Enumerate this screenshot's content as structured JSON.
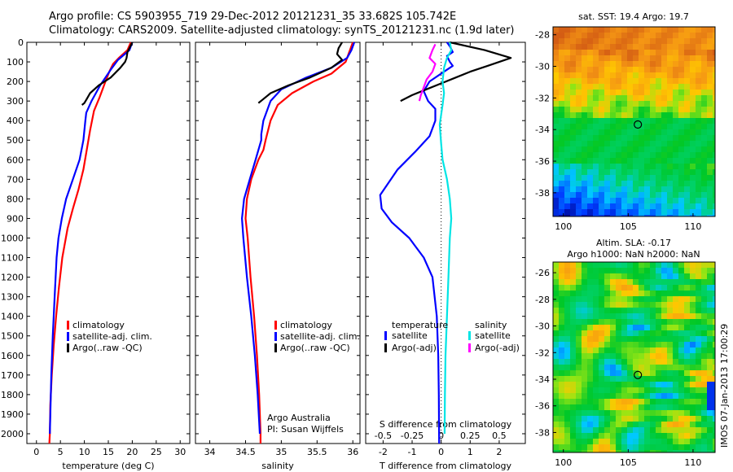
{
  "header": {
    "title_line1": "Argo profile: CS 5903955_719 29-Dec-2012 20121231_35 33.682S 105.742E",
    "title_line2": "Climatology: CARS2009. Satellite-adjusted climatology: synTS_20121231.nc (1.9d later)"
  },
  "colors": {
    "climatology": "#ff0000",
    "satellite": "#0000ff",
    "argo": "#000000",
    "sat_salinity": "#00e5e5",
    "argo_salinity": "#ff00ff"
  },
  "depth_axis": {
    "ticks": [
      "0",
      "100",
      "200",
      "300",
      "400",
      "500",
      "600",
      "700",
      "800",
      "900",
      "1000",
      "1100",
      "1200",
      "1300",
      "1400",
      "1500",
      "1600",
      "1700",
      "1800",
      "1900",
      "2000"
    ],
    "ylim": [
      0,
      2050
    ],
    "inverted": true
  },
  "chart_data": [
    {
      "type": "line",
      "id": "temperature",
      "xlabel": "temperature (deg C)",
      "xlim": [
        -2,
        32
      ],
      "xticks": [
        "0",
        "5",
        "10",
        "15",
        "20",
        "25",
        "30"
      ],
      "xtick_values": [
        0,
        5,
        10,
        15,
        20,
        25,
        30
      ],
      "legend": [
        "climatology",
        "satellite-adj. clim.",
        "Argo(..raw -QC)"
      ],
      "series": [
        {
          "name": "climatology",
          "color": "#ff0000",
          "points": [
            [
              19.7,
              0
            ],
            [
              19,
              40
            ],
            [
              17.2,
              80
            ],
            [
              16,
              110
            ],
            [
              15.2,
              150
            ],
            [
              14.4,
              200
            ],
            [
              13.2,
              280
            ],
            [
              12,
              350
            ],
            [
              11.2,
              450
            ],
            [
              10.5,
              550
            ],
            [
              9.8,
              650
            ],
            [
              8.8,
              750
            ],
            [
              7.6,
              850
            ],
            [
              6.5,
              950
            ],
            [
              5.4,
              1100
            ],
            [
              4.7,
              1250
            ],
            [
              4.1,
              1400
            ],
            [
              3.6,
              1550
            ],
            [
              3.2,
              1700
            ],
            [
              2.9,
              1850
            ],
            [
              2.8,
              2000
            ],
            [
              2.7,
              2050
            ]
          ]
        },
        {
          "name": "satellite-adj. clim.",
          "color": "#0000ff",
          "points": [
            [
              20,
              0
            ],
            [
              19.4,
              40
            ],
            [
              17,
              90
            ],
            [
              15.5,
              140
            ],
            [
              13.3,
              220
            ],
            [
              11.5,
              300
            ],
            [
              10.4,
              360
            ],
            [
              10.2,
              400
            ],
            [
              9.8,
              500
            ],
            [
              9,
              600
            ],
            [
              7.6,
              700
            ],
            [
              6.2,
              800
            ],
            [
              5.3,
              900
            ],
            [
              4.6,
              1000
            ],
            [
              4.2,
              1100
            ],
            [
              3.8,
              1300
            ],
            [
              3.4,
              1500
            ],
            [
              3.1,
              1700
            ],
            [
              2.9,
              1900
            ],
            [
              2.8,
              2000
            ]
          ]
        },
        {
          "name": "Argo(..raw -QC)",
          "color": "#000000",
          "points": [
            [
              20,
              0
            ],
            [
              19.6,
              20
            ],
            [
              19,
              50
            ],
            [
              18.8,
              80
            ],
            [
              18.5,
              100
            ],
            [
              17.5,
              130
            ],
            [
              15.5,
              180
            ],
            [
              13,
              220
            ],
            [
              11.2,
              260
            ],
            [
              10.5,
              290
            ],
            [
              10,
              310
            ],
            [
              9.5,
              320
            ]
          ]
        }
      ]
    },
    {
      "type": "line",
      "id": "salinity",
      "xlabel": "salinity",
      "xlim": [
        33.8,
        36.1
      ],
      "xticks": [
        "34",
        "34.5",
        "35",
        "35.5",
        "36"
      ],
      "xtick_values": [
        34,
        34.5,
        35,
        35.5,
        36
      ],
      "legend": [
        "climatology",
        "satellite-adj. clim.",
        "Argo(..raw -QC)"
      ],
      "annotation": [
        "Argo Australia",
        "PI: Susan Wijffels"
      ],
      "series": [
        {
          "name": "climatology",
          "color": "#ff0000",
          "points": [
            [
              36,
              0
            ],
            [
              35.95,
              50
            ],
            [
              35.9,
              100
            ],
            [
              35.7,
              160
            ],
            [
              35.45,
              200
            ],
            [
              35.15,
              260
            ],
            [
              34.95,
              320
            ],
            [
              34.85,
              400
            ],
            [
              34.78,
              500
            ],
            [
              34.75,
              550
            ],
            [
              34.68,
              600
            ],
            [
              34.58,
              700
            ],
            [
              34.52,
              800
            ],
            [
              34.5,
              900
            ],
            [
              34.53,
              1000
            ],
            [
              34.57,
              1200
            ],
            [
              34.62,
              1400
            ],
            [
              34.66,
              1600
            ],
            [
              34.69,
              1800
            ],
            [
              34.71,
              2000
            ],
            [
              34.71,
              2050
            ]
          ]
        },
        {
          "name": "satellite-adj. clim.",
          "color": "#0000ff",
          "points": [
            [
              36.02,
              0
            ],
            [
              35.98,
              40
            ],
            [
              35.92,
              80
            ],
            [
              35.7,
              130
            ],
            [
              35.35,
              180
            ],
            [
              35.0,
              240
            ],
            [
              34.85,
              300
            ],
            [
              34.75,
              400
            ],
            [
              34.72,
              470
            ],
            [
              34.72,
              500
            ],
            [
              34.64,
              600
            ],
            [
              34.56,
              700
            ],
            [
              34.48,
              800
            ],
            [
              34.45,
              900
            ],
            [
              34.47,
              1000
            ],
            [
              34.52,
              1200
            ],
            [
              34.58,
              1400
            ],
            [
              34.63,
              1600
            ],
            [
              34.67,
              1800
            ],
            [
              34.7,
              2000
            ]
          ]
        },
        {
          "name": "Argo(..raw -QC)",
          "color": "#000000",
          "points": [
            [
              35.85,
              0
            ],
            [
              35.8,
              30
            ],
            [
              35.78,
              60
            ],
            [
              35.85,
              90
            ],
            [
              35.7,
              130
            ],
            [
              35.4,
              180
            ],
            [
              35.1,
              220
            ],
            [
              34.85,
              260
            ],
            [
              34.75,
              290
            ],
            [
              34.68,
              310
            ]
          ]
        }
      ]
    },
    {
      "type": "line",
      "id": "difference",
      "xlabel": "T difference from climatology",
      "xlabel_top": "S difference from climatology",
      "xlim": [
        -2.6,
        2.9
      ],
      "xticks": [
        "-2",
        "-1",
        "0",
        "1",
        "2"
      ],
      "xtick_values": [
        -2,
        -1,
        0,
        1,
        2
      ],
      "s_xticks": [
        "-0.5",
        "-0.25",
        "0",
        "0.25",
        "0.5"
      ],
      "s_xtick_values": [
        -0.5,
        -0.25,
        0,
        0.25,
        0.5
      ],
      "legend_temperature_title": "temperature",
      "legend_salinity_title": "salinity",
      "legend_temperature": [
        "satellite",
        "Argo(-adj)"
      ],
      "legend_salinity": [
        "satellite",
        "Argo(-adj)"
      ],
      "series": [
        {
          "name": "satellite",
          "color": "#0000ff",
          "points": [
            [
              0.2,
              0
            ],
            [
              0.3,
              20
            ],
            [
              0.4,
              50
            ],
            [
              0.2,
              70
            ],
            [
              0.3,
              100
            ],
            [
              0.4,
              120
            ],
            [
              0.1,
              150
            ],
            [
              -0.4,
              200
            ],
            [
              -0.6,
              250
            ],
            [
              -0.45,
              300
            ],
            [
              -0.2,
              340
            ],
            [
              -0.2,
              400
            ],
            [
              -0.4,
              480
            ],
            [
              -0.9,
              560
            ],
            [
              -1.5,
              650
            ],
            [
              -2.1,
              780
            ],
            [
              -2.05,
              850
            ],
            [
              -1.7,
              920
            ],
            [
              -1.1,
              1000
            ],
            [
              -0.6,
              1100
            ],
            [
              -0.3,
              1200
            ],
            [
              -0.15,
              1400
            ],
            [
              -0.1,
              1600
            ],
            [
              -0.08,
              1800
            ],
            [
              -0.07,
              2050
            ]
          ]
        },
        {
          "name": "Argo(-adj)",
          "color": "#000000",
          "points": [
            [
              0.3,
              0
            ],
            [
              1.5,
              40
            ],
            [
              2.4,
              80
            ],
            [
              1.6,
              120
            ],
            [
              1.0,
              150
            ],
            [
              0.5,
              180
            ],
            [
              0,
              210
            ],
            [
              -0.5,
              240
            ],
            [
              -1.0,
              270
            ],
            [
              -1.4,
              300
            ]
          ]
        },
        {
          "name": "satellite salinity",
          "color": "#00e5e5",
          "points": [
            [
              0.3,
              0
            ],
            [
              0.35,
              40
            ],
            [
              0.2,
              80
            ],
            [
              0.1,
              130
            ],
            [
              0.05,
              200
            ],
            [
              0.1,
              260
            ],
            [
              0.05,
              320
            ],
            [
              -0.05,
              420
            ],
            [
              0,
              520
            ],
            [
              0.05,
              600
            ],
            [
              0.2,
              700
            ],
            [
              0.3,
              800
            ],
            [
              0.35,
              900
            ],
            [
              0.3,
              1000
            ],
            [
              0.25,
              1200
            ],
            [
              0.2,
              1400
            ],
            [
              0.15,
              1600
            ],
            [
              0.13,
              1800
            ],
            [
              0.12,
              2000
            ]
          ]
        },
        {
          "name": "Argo(-adj) salinity",
          "color": "#ff00ff",
          "points": [
            [
              -0.2,
              10
            ],
            [
              -0.3,
              40
            ],
            [
              -0.4,
              80
            ],
            [
              -0.2,
              110
            ],
            [
              -0.3,
              150
            ],
            [
              -0.5,
              190
            ],
            [
              -0.6,
              230
            ],
            [
              -0.7,
              270
            ],
            [
              -0.75,
              300
            ]
          ]
        }
      ]
    }
  ],
  "map_sst": {
    "title": "sat. SST: 19.4  Argo: 19.7",
    "xticks": [
      "100",
      "105",
      "110"
    ],
    "xtick_values": [
      100,
      105,
      110
    ],
    "yticks": [
      "-28",
      "-30",
      "-32",
      "-34",
      "-36",
      "-38"
    ],
    "ytick_values": [
      -28,
      -30,
      -32,
      -34,
      -36,
      -38
    ],
    "xlim": [
      99.2,
      111.7
    ],
    "ylim": [
      -39.5,
      -27.5
    ],
    "marker": [
      105.742,
      -33.682
    ]
  },
  "map_sla": {
    "title_line1": "Altim. SLA: -0.17",
    "title_line2": "Argo h1000: NaN h2000: NaN",
    "xticks": [
      "100",
      "105",
      "110"
    ],
    "xtick_values": [
      100,
      105,
      110
    ],
    "yticks": [
      "-26",
      "-28",
      "-30",
      "-32",
      "-34",
      "-36",
      "-38"
    ],
    "ytick_values": [
      -26,
      -28,
      -30,
      -32,
      -34,
      -36,
      -38
    ],
    "xlim": [
      99.2,
      111.7
    ],
    "ylim": [
      -39.5,
      -25.2
    ],
    "marker": [
      105.742,
      -33.682
    ]
  },
  "footer": {
    "vertical_text": "IMOS 07-Jan-2013 17:00:29"
  }
}
